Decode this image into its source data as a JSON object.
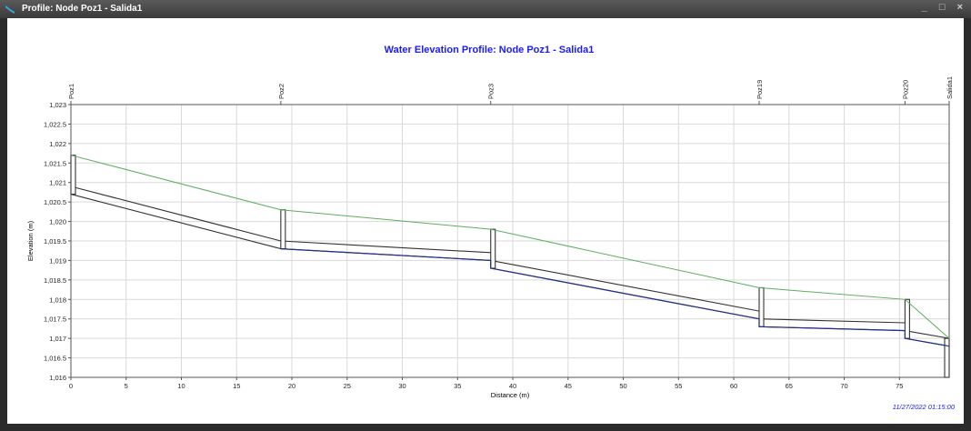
{
  "window": {
    "title": "Profile: Node Poz1 - Salida1",
    "icon": "profile-chart-icon",
    "controls": [
      "_",
      "□",
      "×"
    ]
  },
  "chart_data": {
    "type": "line",
    "title": "Water Elevation Profile: Node Poz1 - Salida1",
    "xlabel": "Distance (m)",
    "ylabel": "Elevation (m)",
    "xlim": [
      0,
      79.5
    ],
    "ylim": [
      1016,
      1023
    ],
    "grid": true,
    "x_ticks": [
      0,
      5,
      10,
      15,
      20,
      25,
      30,
      35,
      40,
      45,
      50,
      55,
      60,
      65,
      70,
      75
    ],
    "x_tick_labels": [
      "0",
      "5",
      "10",
      "15",
      "20",
      "25",
      "30",
      "35",
      "40",
      "45",
      "50",
      "55",
      "60",
      "65",
      "70",
      "75"
    ],
    "y_ticks": [
      1016,
      1016.5,
      1017,
      1017.5,
      1018,
      1018.5,
      1019,
      1019.5,
      1020,
      1020.5,
      1021,
      1021.5,
      1022,
      1022.5,
      1023
    ],
    "y_tick_labels": [
      "1,016",
      "1,016.5",
      "1,017",
      "1,017.5",
      "1,018",
      "1,018.5",
      "1,019",
      "1,019.5",
      "1,020",
      "1,020.5",
      "1,021",
      "1,021.5",
      "1,022",
      "1,022.5",
      "1,023"
    ],
    "nodes": [
      {
        "name": "Poz1",
        "x": 0,
        "invert": 1020.7,
        "ground": 1021.7
      },
      {
        "name": "Poz2",
        "x": 19.0,
        "invert": 1019.3,
        "ground": 1020.3
      },
      {
        "name": "Poz3",
        "x": 38.0,
        "invert": 1018.8,
        "ground": 1019.8
      },
      {
        "name": "Poz19",
        "x": 62.3,
        "invert": 1017.3,
        "ground": 1018.3
      },
      {
        "name": "Poz20",
        "x": 75.5,
        "invert": 1017.0,
        "ground": 1018.0
      },
      {
        "name": "Salida1",
        "x": 79.5,
        "invert": 1016.0,
        "ground": 1017.0
      }
    ],
    "links": [
      {
        "x": [
          0,
          19.0
        ],
        "bottom": [
          1020.7,
          1019.3
        ],
        "top": [
          1020.9,
          1019.5
        ]
      },
      {
        "x": [
          19.0,
          38.0
        ],
        "bottom": [
          1019.3,
          1019.0
        ],
        "top": [
          1019.5,
          1019.2
        ]
      },
      {
        "x": [
          38.0,
          62.3
        ],
        "bottom": [
          1018.8,
          1017.5
        ],
        "top": [
          1019.0,
          1017.7
        ]
      },
      {
        "x": [
          62.3,
          75.5
        ],
        "bottom": [
          1017.3,
          1017.2
        ],
        "top": [
          1017.5,
          1017.4
        ]
      },
      {
        "x": [
          75.5,
          79.5
        ],
        "bottom": [
          1017.0,
          1016.8
        ],
        "top": [
          1017.2,
          1017.0
        ]
      }
    ],
    "water_line": {
      "x": [
        19.0,
        38.0,
        38.0,
        62.3,
        62.3,
        75.5,
        75.5,
        79.5
      ],
      "y": [
        1019.3,
        1019.0,
        1018.8,
        1017.5,
        1017.3,
        1017.2,
        1017.0,
        1016.8
      ]
    },
    "ground_line": {
      "x": [
        0,
        19.0,
        38.0,
        62.3,
        75.5,
        79.5
      ],
      "y": [
        1021.7,
        1020.3,
        1019.8,
        1018.3,
        1018.0,
        1017.0
      ]
    },
    "timestamp": "11/27/2022 01:15:00",
    "colors": {
      "ground": "#5cae5c",
      "water": "#1f2f8c",
      "conduit": "#333333",
      "grid": "#d9d9d9",
      "title": "#1a1aff",
      "timestamp": "#1a1aff"
    }
  }
}
